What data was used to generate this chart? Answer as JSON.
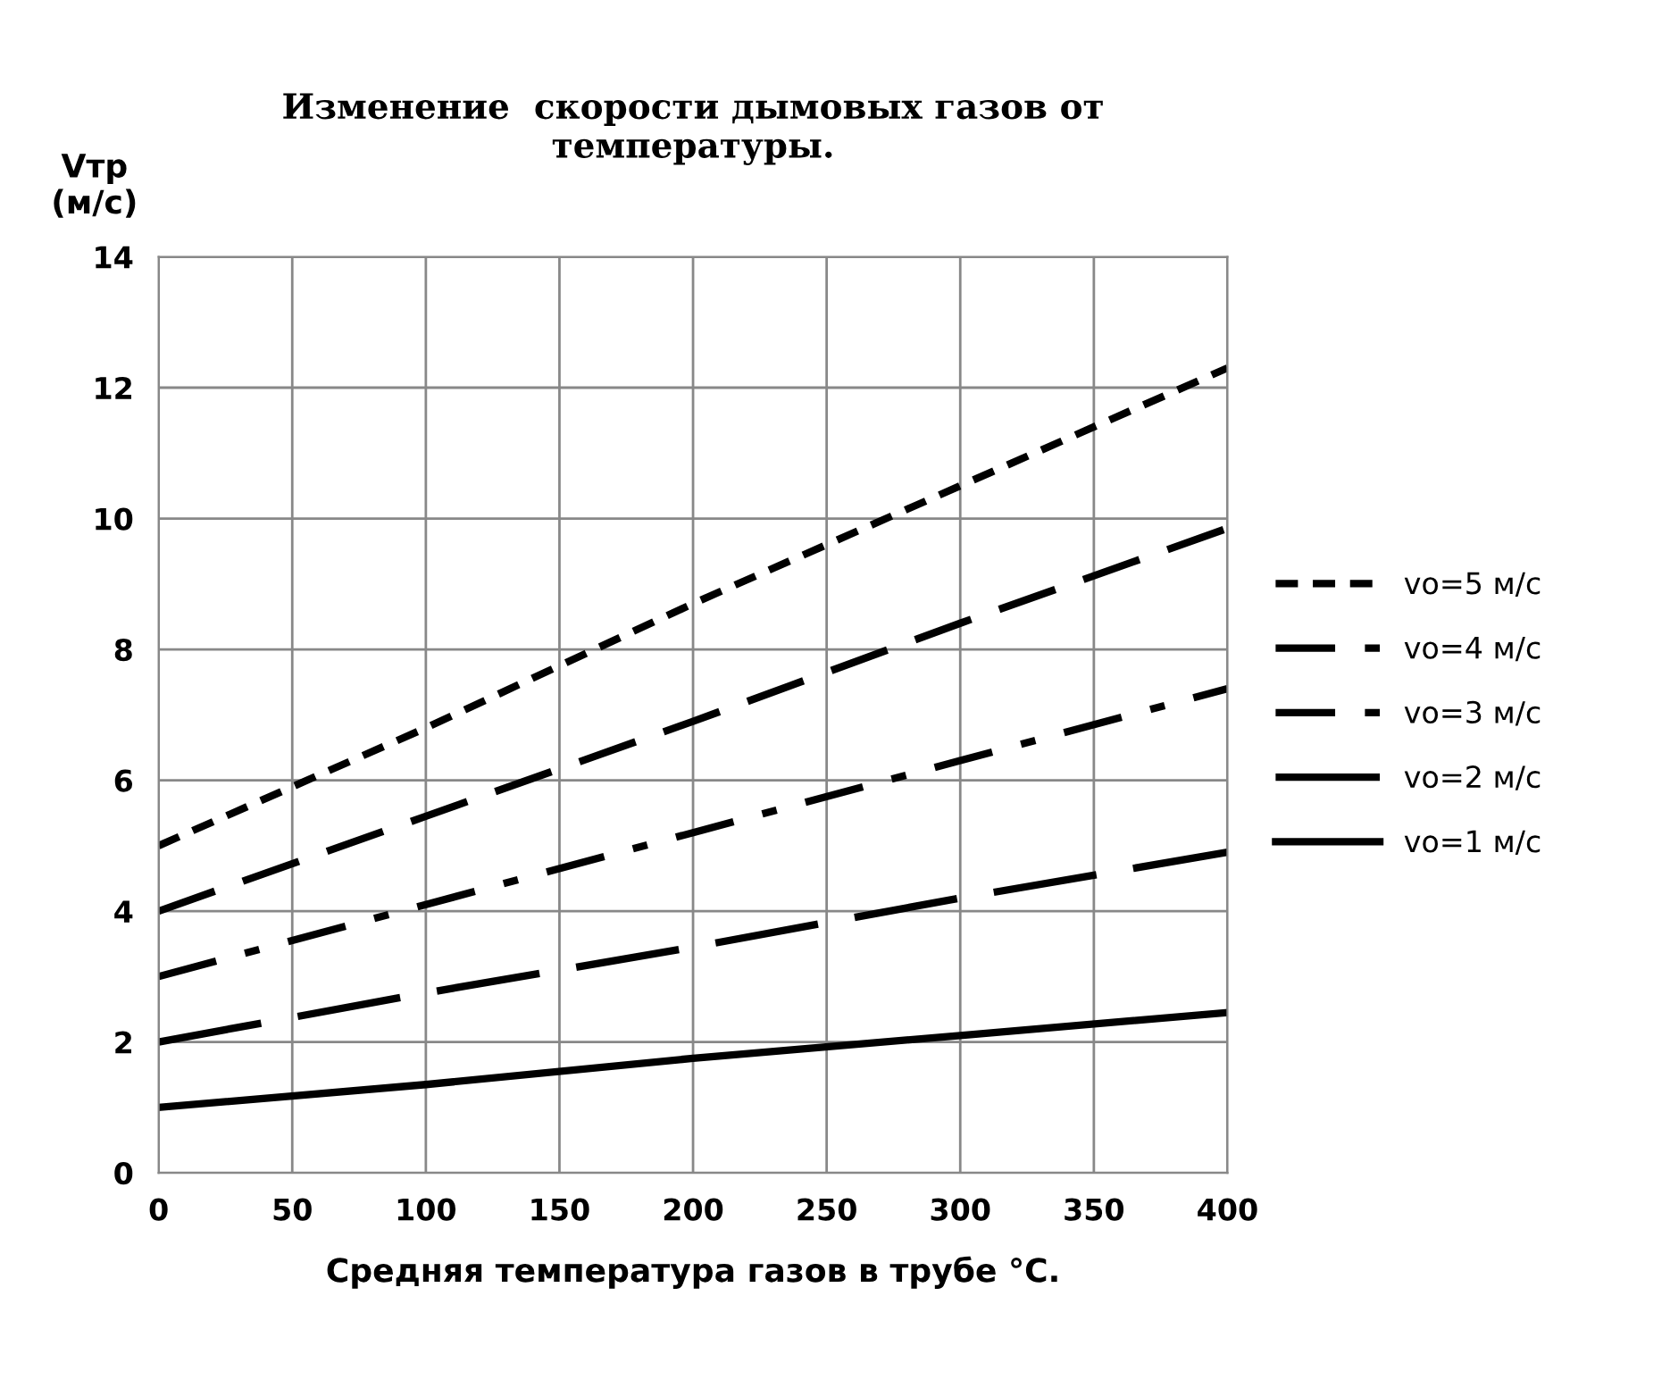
{
  "chart_data": {
    "type": "line",
    "title": "Изменение  скорости дымовых газов от\nтемпературы.",
    "xlabel": "Средняя температура газов в трубе °C.",
    "ylabel": "Vтр\n(м/с)",
    "x": [
      0,
      100,
      200,
      300,
      400
    ],
    "series": [
      {
        "name": "vo=5 м/с",
        "color": "#000000",
        "line_style": "dotted",
        "values": [
          5,
          6.8,
          8.7,
          10.5,
          12.3
        ]
      },
      {
        "name": "vo=4 м/с",
        "color": "#000000",
        "line_style": "dashed",
        "values": [
          4,
          5.45,
          6.9,
          8.4,
          9.85
        ]
      },
      {
        "name": "vo=3 м/с",
        "color": "#000000",
        "line_style": "dashdot",
        "values": [
          3,
          4.1,
          5.2,
          6.3,
          7.4
        ]
      },
      {
        "name": "vo=2 м/с",
        "color": "#000000",
        "line_style": "longdash",
        "values": [
          2,
          2.75,
          3.45,
          4.2,
          4.9
        ]
      },
      {
        "name": "vo=1 м/с",
        "color": "#000000",
        "line_style": "solid",
        "values": [
          1,
          1.35,
          1.75,
          2.1,
          2.45
        ]
      }
    ],
    "xlim": [
      0,
      400
    ],
    "xticks": [
      0,
      50,
      100,
      150,
      200,
      250,
      300,
      350,
      400
    ],
    "ylim": [
      0,
      14
    ],
    "yticks": [
      0,
      2,
      4,
      6,
      8,
      10,
      12,
      14
    ],
    "grid": true,
    "legend": "right",
    "marker": "none"
  }
}
